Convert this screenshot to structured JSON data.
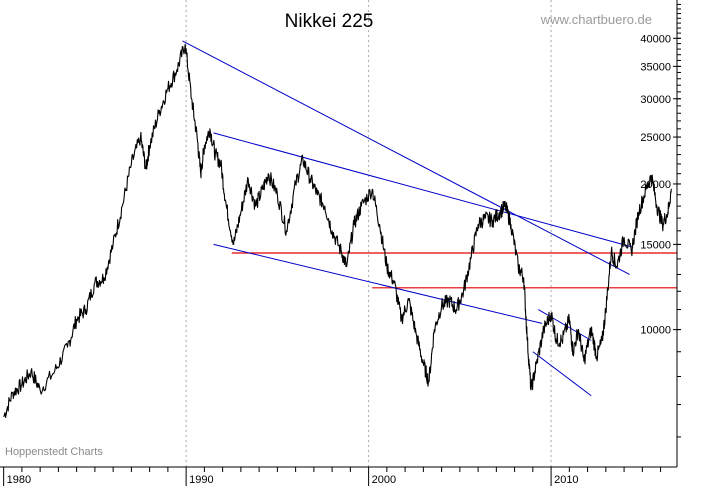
{
  "chart_data": {
    "type": "line",
    "title": "Nikkei 225",
    "source": "www.chartbuero.de",
    "credit": "Hoppenstedt Charts",
    "xlabel": "",
    "ylabel": "",
    "y_scale": "log",
    "ylim": [
      5200,
      48000
    ],
    "xlim": [
      1979.8,
      2016.9
    ],
    "y_ticks": [
      {
        "value": 10000,
        "label": "10000"
      },
      {
        "value": 15000,
        "label": "15000"
      },
      {
        "value": 20000,
        "label": "20000"
      },
      {
        "value": 25000,
        "label": "25000"
      },
      {
        "value": 30000,
        "label": "30000"
      },
      {
        "value": 35000,
        "label": "35000"
      },
      {
        "value": 40000,
        "label": "40000"
      }
    ],
    "x_ticks": [
      {
        "value": 1980,
        "label": "1980"
      },
      {
        "value": 1990,
        "label": "1990"
      },
      {
        "value": 2000,
        "label": "2000"
      },
      {
        "value": 2010,
        "label": "2010"
      }
    ],
    "x_gridlines": [
      1990,
      2000,
      2010
    ],
    "series": [
      {
        "color": "#000000",
        "x": [
          1980.0,
          1980.5,
          1981.0,
          1981.5,
          1982.0,
          1982.8,
          1983.5,
          1984.0,
          1984.5,
          1985.0,
          1985.5,
          1986.0,
          1986.5,
          1987.0,
          1987.5,
          1987.8,
          1988.0,
          1988.5,
          1989.0,
          1989.5,
          1989.95,
          1990.3,
          1990.6,
          1990.8,
          1991.0,
          1991.3,
          1991.6,
          1991.9,
          1992.2,
          1992.6,
          1993.0,
          1993.4,
          1993.8,
          1994.2,
          1994.5,
          1995.0,
          1995.5,
          1996.0,
          1996.4,
          1996.8,
          1997.2,
          1997.6,
          1998.0,
          1998.5,
          1998.8,
          1999.2,
          1999.6,
          2000.2,
          2000.6,
          2001.0,
          2001.4,
          2001.8,
          2002.2,
          2002.6,
          2003.0,
          2003.3,
          2003.6,
          2004.0,
          2004.4,
          2004.8,
          2005.2,
          2005.6,
          2006.0,
          2006.4,
          2006.8,
          2007.2,
          2007.5,
          2007.8,
          2008.2,
          2008.5,
          2008.7,
          2008.9,
          2009.2,
          2009.6,
          2010.0,
          2010.3,
          2010.6,
          2011.0,
          2011.2,
          2011.5,
          2011.8,
          2012.2,
          2012.5,
          2012.8,
          2013.0,
          2013.3,
          2013.6,
          2014.0,
          2014.4,
          2014.8,
          2015.2,
          2015.5,
          2015.8,
          2016.1,
          2016.4,
          2016.6
        ],
        "values": [
          6600,
          7400,
          7700,
          8200,
          7500,
          8200,
          9200,
          10500,
          11000,
          12500,
          12800,
          15000,
          18000,
          22000,
          25000,
          21500,
          24000,
          28000,
          31500,
          34500,
          38900,
          30000,
          25000,
          21000,
          24000,
          26000,
          23000,
          22000,
          18000,
          15000,
          17500,
          20500,
          18000,
          19500,
          21000,
          19000,
          16000,
          20000,
          22500,
          20500,
          19000,
          18000,
          16000,
          14500,
          13500,
          16500,
          18000,
          19500,
          16500,
          13500,
          12500,
          10500,
          11500,
          9800,
          8500,
          7800,
          10000,
          11200,
          11500,
          11000,
          12000,
          14000,
          16500,
          17000,
          16800,
          17500,
          18000,
          16500,
          13500,
          12800,
          9500,
          7500,
          8500,
          10000,
          10800,
          9500,
          9500,
          10500,
          9000,
          10000,
          8600,
          10000,
          8800,
          9500,
          11000,
          14500,
          13500,
          15500,
          14500,
          17500,
          19500,
          20800,
          18000,
          16500,
          17500,
          19500
        ]
      }
    ],
    "trendlines": [
      {
        "color": "#0000c8",
        "x": [
          1989.8,
          2014.3
        ],
        "values": [
          39500,
          13000
        ]
      },
      {
        "color": "#0000c8",
        "x": [
          1991.5,
          2014.5
        ],
        "values": [
          25500,
          14800
        ]
      },
      {
        "color": "#0000c8",
        "x": [
          1991.5,
          2009.5
        ],
        "values": [
          15000,
          10300
        ]
      },
      {
        "color": "#0000c8",
        "x": [
          2009.3,
          2012.2
        ],
        "values": [
          11000,
          9500
        ]
      },
      {
        "color": "#0000c8",
        "x": [
          2009.0,
          2012.2
        ],
        "values": [
          9000,
          7300
        ]
      }
    ],
    "hlines": [
      {
        "color": "#e00000",
        "value": 14400,
        "x": [
          1992.5,
          2016.9
        ]
      },
      {
        "color": "#e00000",
        "value": 12200,
        "x": [
          2000.2,
          2016.9
        ]
      }
    ]
  }
}
